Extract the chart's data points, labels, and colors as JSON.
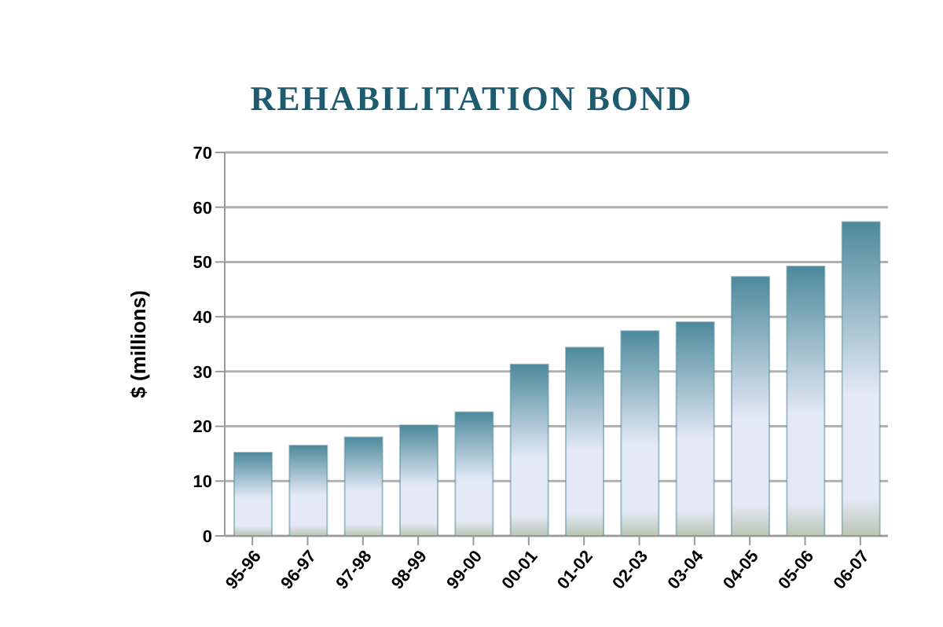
{
  "chart_data": {
    "type": "bar",
    "title": "REHABILITATION BOND",
    "ylabel": "$ (millions)",
    "categories": [
      "95-96",
      "96-97",
      "97-98",
      "98-99",
      "99-00",
      "00-01",
      "01-02",
      "02-03",
      "03-04",
      "04-05",
      "05-06",
      "06-07"
    ],
    "values": [
      15.2,
      16.5,
      18.0,
      20.2,
      22.6,
      31.3,
      34.4,
      37.4,
      39.0,
      47.3,
      49.2,
      57.3
    ],
    "color": "#4d8a9c",
    "ylim": [
      0,
      70
    ],
    "yticks": [
      0,
      10,
      20,
      30,
      40,
      50,
      60,
      70
    ],
    "grid": "y"
  }
}
